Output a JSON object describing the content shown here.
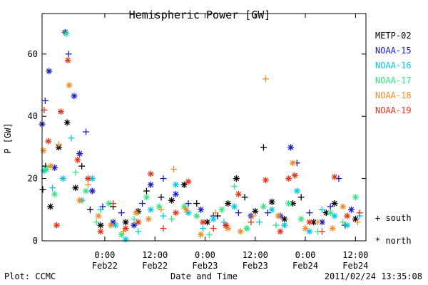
{
  "chart_data": {
    "type": "scatter",
    "title": "Hemispheric Power [GW]",
    "ylabel": "P [GW]",
    "xlabel": "Date and Time",
    "ylim": [
      0,
      73
    ],
    "y_ticks": [
      0,
      20,
      40,
      60
    ],
    "xlim": [
      "2011-02-21 09:00",
      "2011-02-24 14:30"
    ],
    "x_ticks": [
      {
        "time": "2011-02-22 00:00",
        "line1": "0:00",
        "line2": "Feb22"
      },
      {
        "time": "2011-02-22 12:00",
        "line1": "12:00",
        "line2": "Feb22"
      },
      {
        "time": "2011-02-23 00:00",
        "line1": "0:00",
        "line2": "Feb23"
      },
      {
        "time": "2011-02-23 12:00",
        "line1": "12:00",
        "line2": "Feb23"
      },
      {
        "time": "2011-02-24 00:00",
        "line1": "0:00",
        "line2": "Feb24"
      },
      {
        "time": "2011-02-24 12:00",
        "line1": "12:00",
        "line2": "Feb24"
      }
    ],
    "legend_position": "right",
    "series": [
      {
        "name": "METP-02",
        "color": "#000000",
        "points": [
          [
            "2011-02-21 09:10",
            16.5,
            "+"
          ],
          [
            "2011-02-21 09:50",
            24,
            "+"
          ],
          [
            "2011-02-21 11:00",
            11,
            "*"
          ],
          [
            "2011-02-21 13:00",
            30,
            "*"
          ],
          [
            "2011-02-21 15:00",
            38,
            "*"
          ],
          [
            "2011-02-21 17:00",
            17,
            "*"
          ],
          [
            "2011-02-21 18:30",
            24,
            "+"
          ],
          [
            "2011-02-21 20:30",
            10,
            "+"
          ],
          [
            "2011-02-21 23:00",
            5,
            "*"
          ],
          [
            "2011-02-22 02:00",
            11,
            "+"
          ],
          [
            "2011-02-22 05:00",
            6,
            "*"
          ],
          [
            "2011-02-22 08:00",
            9.5,
            "*"
          ],
          [
            "2011-02-22 10:00",
            16,
            "+"
          ],
          [
            "2011-02-22 13:30",
            14,
            "+"
          ],
          [
            "2011-02-22 16:00",
            13,
            "*"
          ],
          [
            "2011-02-22 19:00",
            18,
            "*"
          ],
          [
            "2011-02-22 22:00",
            12,
            "+"
          ],
          [
            "2011-02-23 00:30",
            6,
            "*"
          ],
          [
            "2011-02-23 03:00",
            8,
            "+"
          ],
          [
            "2011-02-23 05:30",
            12,
            "*"
          ],
          [
            "2011-02-23 07:30",
            20,
            "*"
          ],
          [
            "2011-02-23 09:30",
            14,
            "+"
          ],
          [
            "2011-02-23 12:00",
            9.5,
            "*"
          ],
          [
            "2011-02-23 14:00",
            30,
            "+"
          ],
          [
            "2011-02-23 16:00",
            12.5,
            "*"
          ],
          [
            "2011-02-23 19:00",
            7,
            "*"
          ],
          [
            "2011-02-23 21:00",
            12,
            "*"
          ],
          [
            "2011-02-23 23:00",
            14,
            "+"
          ],
          [
            "2011-02-24 02:00",
            6,
            "*"
          ],
          [
            "2011-02-24 05:00",
            9,
            "*"
          ],
          [
            "2011-02-24 07:00",
            12,
            "*"
          ],
          [
            "2011-02-24 09:30",
            5,
            "+"
          ],
          [
            "2011-02-24 12:00",
            7,
            "*"
          ]
        ]
      },
      {
        "name": "NOAA-15",
        "color": "#1a1ac8",
        "points": [
          [
            "2011-02-21 09:00",
            37.5,
            "*"
          ],
          [
            "2011-02-21 09:45",
            45,
            "+"
          ],
          [
            "2011-02-21 10:40",
            54.5,
            "*"
          ],
          [
            "2011-02-21 12:00",
            23.5,
            "*"
          ],
          [
            "2011-02-21 14:30",
            67,
            "*"
          ],
          [
            "2011-02-21 15:20",
            60,
            "+"
          ],
          [
            "2011-02-21 16:40",
            46.5,
            "*"
          ],
          [
            "2011-02-21 18:00",
            28,
            "*"
          ],
          [
            "2011-02-21 19:30",
            35,
            "+"
          ],
          [
            "2011-02-21 21:00",
            16,
            "*"
          ],
          [
            "2011-02-21 23:30",
            11,
            "+"
          ],
          [
            "2011-02-22 02:00",
            6,
            "*"
          ],
          [
            "2011-02-22 04:00",
            9,
            "+"
          ],
          [
            "2011-02-22 07:00",
            5,
            "*"
          ],
          [
            "2011-02-22 09:00",
            12,
            "+"
          ],
          [
            "2011-02-22 11:00",
            18,
            "*"
          ],
          [
            "2011-02-22 14:00",
            20,
            "+"
          ],
          [
            "2011-02-22 17:00",
            15,
            "*"
          ],
          [
            "2011-02-22 20:00",
            12,
            "+"
          ],
          [
            "2011-02-22 23:00",
            10,
            "*"
          ],
          [
            "2011-02-23 02:00",
            8,
            "+"
          ],
          [
            "2011-02-23 05:00",
            5,
            "*"
          ],
          [
            "2011-02-23 08:00",
            9,
            "+"
          ],
          [
            "2011-02-23 11:00",
            8,
            "*"
          ],
          [
            "2011-02-23 15:00",
            9,
            "+"
          ],
          [
            "2011-02-23 18:00",
            8,
            "*"
          ],
          [
            "2011-02-23 20:30",
            30,
            "*"
          ],
          [
            "2011-02-23 22:00",
            25,
            "+"
          ],
          [
            "2011-02-24 01:00",
            9,
            "+"
          ],
          [
            "2011-02-24 04:00",
            6,
            "*"
          ],
          [
            "2011-02-24 06:00",
            11,
            "+"
          ],
          [
            "2011-02-24 08:00",
            20,
            "+"
          ],
          [
            "2011-02-24 11:00",
            10,
            "*"
          ]
        ]
      },
      {
        "name": "NOAA-16",
        "color": "#00c8e6",
        "points": [
          [
            "2011-02-21 09:30",
            22.5,
            "*"
          ],
          [
            "2011-02-21 11:30",
            17,
            "+"
          ],
          [
            "2011-02-21 14:00",
            20,
            "*"
          ],
          [
            "2011-02-21 16:00",
            33,
            "+"
          ],
          [
            "2011-02-21 18:30",
            13,
            "*"
          ],
          [
            "2011-02-21 21:00",
            20,
            "*"
          ],
          [
            "2011-02-21 23:00",
            10,
            "+"
          ],
          [
            "2011-02-22 02:30",
            5,
            "*"
          ],
          [
            "2011-02-22 05:00",
            0.5,
            "*"
          ],
          [
            "2011-02-22 08:00",
            3,
            "+"
          ],
          [
            "2011-02-22 11:00",
            10,
            "*"
          ],
          [
            "2011-02-22 14:00",
            8,
            "+"
          ],
          [
            "2011-02-22 17:00",
            18,
            "*"
          ],
          [
            "2011-02-22 20:00",
            9,
            "*"
          ],
          [
            "2011-02-22 23:30",
            4,
            "+"
          ],
          [
            "2011-02-23 02:00",
            7,
            "*"
          ],
          [
            "2011-02-23 04:30",
            6,
            "+"
          ],
          [
            "2011-02-23 07:00",
            11,
            "*"
          ],
          [
            "2011-02-23 10:00",
            4,
            "*"
          ],
          [
            "2011-02-23 13:00",
            6,
            "+"
          ],
          [
            "2011-02-23 16:00",
            10,
            "*"
          ],
          [
            "2011-02-23 19:00",
            5,
            "*"
          ],
          [
            "2011-02-23 22:00",
            16,
            "*"
          ],
          [
            "2011-02-24 01:00",
            3,
            "*"
          ],
          [
            "2011-02-24 04:00",
            10,
            "+"
          ],
          [
            "2011-02-24 07:00",
            8,
            "*"
          ],
          [
            "2011-02-24 10:00",
            5,
            "*"
          ],
          [
            "2011-02-24 13:00",
            8,
            "+"
          ]
        ]
      },
      {
        "name": "NOAA-17",
        "color": "#33e680",
        "points": [
          [
            "2011-02-21 10:00",
            23,
            "*"
          ],
          [
            "2011-02-21 12:00",
            15,
            "*"
          ],
          [
            "2011-02-21 14:50",
            66.5,
            "*"
          ],
          [
            "2011-02-21 17:00",
            22,
            "+"
          ],
          [
            "2011-02-21 19:30",
            16,
            "*"
          ],
          [
            "2011-02-21 22:00",
            6,
            "+"
          ],
          [
            "2011-02-22 01:00",
            12,
            "*"
          ],
          [
            "2011-02-22 04:00",
            2,
            "*"
          ],
          [
            "2011-02-22 07:00",
            7,
            "+"
          ],
          [
            "2011-02-22 10:00",
            14,
            "*"
          ],
          [
            "2011-02-22 13:00",
            11,
            "*"
          ],
          [
            "2011-02-22 16:00",
            7,
            "+"
          ],
          [
            "2011-02-22 19:00",
            11,
            "*"
          ],
          [
            "2011-02-22 22:00",
            8,
            "*"
          ],
          [
            "2011-02-23 01:00",
            2,
            "+"
          ],
          [
            "2011-02-23 04:00",
            10,
            "*"
          ],
          [
            "2011-02-23 07:00",
            17.5,
            "+"
          ],
          [
            "2011-02-23 10:00",
            4,
            "*"
          ],
          [
            "2011-02-23 14:00",
            11,
            "*"
          ],
          [
            "2011-02-23 17:00",
            5,
            "+"
          ],
          [
            "2011-02-23 20:00",
            12,
            "*"
          ],
          [
            "2011-02-23 23:00",
            7,
            "*"
          ],
          [
            "2011-02-24 03:00",
            3,
            "+"
          ],
          [
            "2011-02-24 06:00",
            9,
            "*"
          ],
          [
            "2011-02-24 09:00",
            6,
            "+"
          ],
          [
            "2011-02-24 12:00",
            14,
            "*"
          ]
        ]
      },
      {
        "name": "NOAA-18",
        "color": "#f08c28",
        "points": [
          [
            "2011-02-21 09:20",
            29,
            "*"
          ],
          [
            "2011-02-21 11:00",
            24,
            "*"
          ],
          [
            "2011-02-21 13:00",
            31,
            "+"
          ],
          [
            "2011-02-21 15:30",
            50,
            "*"
          ],
          [
            "2011-02-21 18:00",
            13,
            "*"
          ],
          [
            "2011-02-21 20:00",
            18,
            "+"
          ],
          [
            "2011-02-21 22:30",
            8,
            "*"
          ],
          [
            "2011-02-22 01:30",
            5,
            "*"
          ],
          [
            "2011-02-22 04:30",
            3,
            "+"
          ],
          [
            "2011-02-22 07:30",
            9,
            "*"
          ],
          [
            "2011-02-22 10:30",
            7,
            "*"
          ],
          [
            "2011-02-22 13:30",
            10,
            "+"
          ],
          [
            "2011-02-22 16:30",
            23,
            "+"
          ],
          [
            "2011-02-22 19:30",
            10,
            "*"
          ],
          [
            "2011-02-22 23:00",
            2,
            "*"
          ],
          [
            "2011-02-23 02:30",
            9,
            "+"
          ],
          [
            "2011-02-23 05:30",
            4,
            "*"
          ],
          [
            "2011-02-23 08:30",
            3,
            "*"
          ],
          [
            "2011-02-23 11:30",
            8,
            "+"
          ],
          [
            "2011-02-23 14:30",
            52,
            "+"
          ],
          [
            "2011-02-23 17:30",
            8,
            "*"
          ],
          [
            "2011-02-23 21:00",
            25,
            "*"
          ],
          [
            "2011-02-24 00:00",
            4,
            "*"
          ],
          [
            "2011-02-24 03:00",
            6,
            "+"
          ],
          [
            "2011-02-24 06:30",
            4,
            "*"
          ],
          [
            "2011-02-24 09:00",
            11,
            "*"
          ],
          [
            "2011-02-24 12:30",
            6,
            "+"
          ]
        ]
      },
      {
        "name": "NOAA-19",
        "color": "#e63219",
        "points": [
          [
            "2011-02-21 09:30",
            42,
            "+"
          ],
          [
            "2011-02-21 10:30",
            32,
            "*"
          ],
          [
            "2011-02-21 12:30",
            5,
            "*"
          ],
          [
            "2011-02-21 13:30",
            41.5,
            "*"
          ],
          [
            "2011-02-21 15:10",
            58,
            "*"
          ],
          [
            "2011-02-21 17:30",
            26,
            "*"
          ],
          [
            "2011-02-21 20:00",
            20,
            "*"
          ],
          [
            "2011-02-21 23:00",
            3,
            "*"
          ],
          [
            "2011-02-22 02:00",
            12,
            "+"
          ],
          [
            "2011-02-22 05:00",
            4,
            "*"
          ],
          [
            "2011-02-22 08:00",
            6,
            "*"
          ],
          [
            "2011-02-22 11:00",
            21.5,
            "*"
          ],
          [
            "2011-02-22 14:00",
            4,
            "+"
          ],
          [
            "2011-02-22 17:00",
            9,
            "*"
          ],
          [
            "2011-02-22 20:00",
            19,
            "*"
          ],
          [
            "2011-02-22 23:30",
            6,
            "*"
          ],
          [
            "2011-02-23 02:00",
            4,
            "+"
          ],
          [
            "2011-02-23 05:00",
            5,
            "*"
          ],
          [
            "2011-02-23 08:00",
            15,
            "*"
          ],
          [
            "2011-02-23 11:00",
            6,
            "+"
          ],
          [
            "2011-02-23 14:30",
            19.5,
            "*"
          ],
          [
            "2011-02-23 18:00",
            3,
            "*"
          ],
          [
            "2011-02-23 20:00",
            20,
            "*"
          ],
          [
            "2011-02-23 21:30",
            21,
            "*"
          ],
          [
            "2011-02-24 01:00",
            6,
            "*"
          ],
          [
            "2011-02-24 04:00",
            3,
            "+"
          ],
          [
            "2011-02-24 07:00",
            20.5,
            "*"
          ],
          [
            "2011-02-24 10:00",
            8,
            "*"
          ],
          [
            "2011-02-24 13:00",
            9,
            "+"
          ]
        ]
      }
    ]
  },
  "marker_legend": [
    {
      "symbol": "+",
      "label": "south"
    },
    {
      "symbol": "*",
      "label": "north"
    }
  ],
  "footer": {
    "left": "Plot: CCMC",
    "right": "2011/02/24 13:35:08"
  }
}
